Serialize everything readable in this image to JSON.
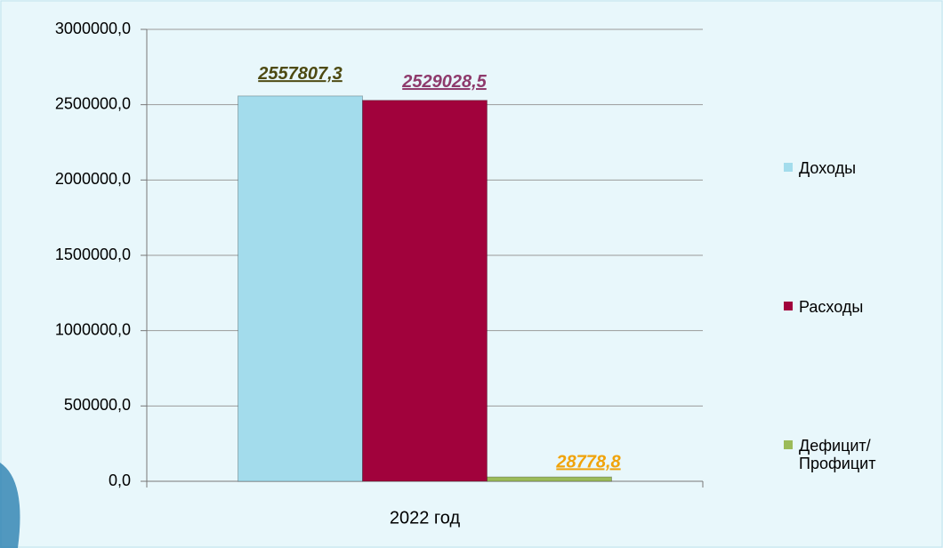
{
  "chart_data": {
    "type": "bar",
    "categories": [
      "2022 год"
    ],
    "series": [
      {
        "name": "Доходы",
        "color": "#a3dcec",
        "label_color": "#4d4a12",
        "values": [
          2557807.3
        ],
        "value_labels": [
          "2557807,3"
        ]
      },
      {
        "name": "Расходы",
        "color": "#a1023c",
        "label_color": "#8e3a6c",
        "values": [
          2529028.5
        ],
        "value_labels": [
          "2529028,5"
        ]
      },
      {
        "name": "Дефицит/Профицит",
        "color": "#9bbb59",
        "label_color": "#f0a30a",
        "values": [
          28778.8
        ],
        "value_labels": [
          "28778,8"
        ]
      }
    ],
    "ylim": [
      0,
      3000000
    ],
    "yticks": [
      {
        "value": 0,
        "label": "0,0"
      },
      {
        "value": 500000,
        "label": "500000,0"
      },
      {
        "value": 1000000,
        "label": "1000000,0"
      },
      {
        "value": 1500000,
        "label": "1500000,0"
      },
      {
        "value": 2000000,
        "label": "2000000,0"
      },
      {
        "value": 2500000,
        "label": "2500000,0"
      },
      {
        "value": 3000000,
        "label": "3000000,0"
      }
    ],
    "grid": true,
    "legend": "right"
  }
}
